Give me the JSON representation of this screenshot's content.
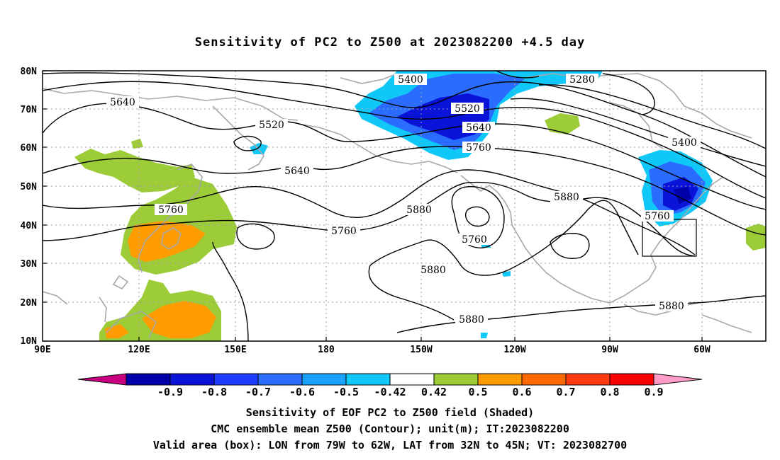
{
  "title": "Sensitivity of PC2 to Z500 at 2023082200 +4.5 day",
  "lat_labels": [
    "80N",
    "70N",
    "60N",
    "50N",
    "40N",
    "30N",
    "20N",
    "10N"
  ],
  "lon_labels": [
    "90E",
    "120E",
    "150E",
    "180",
    "150W",
    "120W",
    "90W",
    "60W"
  ],
  "contour_labels": [
    "5400",
    "5280",
    "5640",
    "5520",
    "5520",
    "5640",
    "5760",
    "5640",
    "5400",
    "5760",
    "5880",
    "5760",
    "5880",
    "5760",
    "5760",
    "5880",
    "5880",
    "5880"
  ],
  "colorbar": {
    "colors": [
      "#c8007f",
      "#0000a8",
      "#0a14d8",
      "#1c3cff",
      "#2a6cff",
      "#1aa0ff",
      "#10c8f8",
      "#ffffff",
      "#9ccc38",
      "#ff9c00",
      "#ff6a00",
      "#ff3a10",
      "#ff0000",
      "#ff9cc8"
    ],
    "tick_labels": [
      "-0.9",
      "-0.8",
      "-0.7",
      "-0.6",
      "-0.5",
      "-0.42",
      "0.42",
      "0.5",
      "0.6",
      "0.7",
      "0.8",
      "0.9"
    ]
  },
  "footer": [
    "Sensitivity of EOF PC2 to Z500 field (Shaded)",
    "CMC ensemble mean Z500 (Contour); unit(m); IT:2023082200",
    "Valid area (box): LON from 79W to 62W, LAT from 32N to 45N; VT: 2023082700"
  ]
}
